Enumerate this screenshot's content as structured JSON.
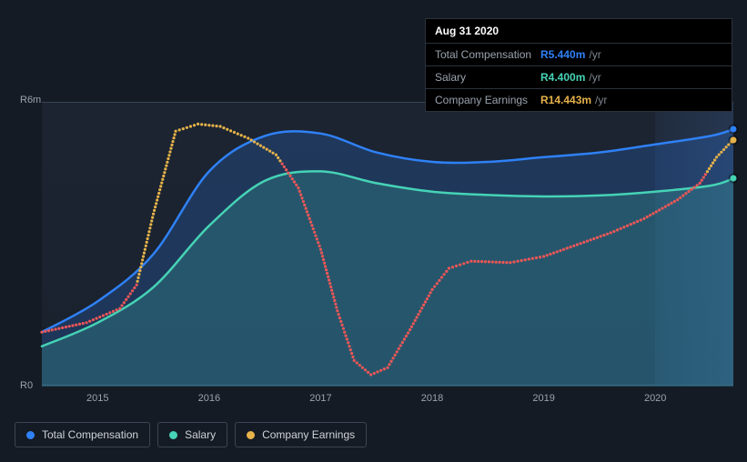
{
  "chart": {
    "type": "area-line",
    "background_color": "#151b24",
    "plot_background": "#1b2430",
    "grid_color": "#3a4452",
    "text_color": "#9aa3af",
    "ylim": [
      0,
      6
    ],
    "y_unit_prefix": "R",
    "y_unit_suffix": "m",
    "y_ticks": [
      {
        "v": 0,
        "label": "R0"
      },
      {
        "v": 6,
        "label": "R6m"
      }
    ],
    "x_range": [
      2014.5,
      2020.7
    ],
    "x_ticks": [
      2015,
      2016,
      2017,
      2018,
      2019,
      2020
    ],
    "highlight_from_x": 2020.0,
    "series": [
      {
        "id": "total_comp",
        "label": "Total Compensation",
        "color": "#2f81f7",
        "fill": "rgba(47,129,247,0.22)",
        "style": "area",
        "line_width": 2.5,
        "data": [
          [
            2014.5,
            1.15
          ],
          [
            2015.0,
            1.8
          ],
          [
            2015.5,
            2.8
          ],
          [
            2016.0,
            4.55
          ],
          [
            2016.5,
            5.3
          ],
          [
            2017.0,
            5.35
          ],
          [
            2017.5,
            4.95
          ],
          [
            2018.0,
            4.75
          ],
          [
            2018.5,
            4.75
          ],
          [
            2019.0,
            4.85
          ],
          [
            2019.5,
            4.95
          ],
          [
            2020.0,
            5.12
          ],
          [
            2020.5,
            5.3
          ],
          [
            2020.7,
            5.44
          ]
        ]
      },
      {
        "id": "salary",
        "label": "Salary",
        "color": "#46d3b6",
        "fill": "rgba(70,211,182,0.20)",
        "style": "area",
        "line_width": 2.5,
        "data": [
          [
            2014.5,
            0.85
          ],
          [
            2015.0,
            1.35
          ],
          [
            2015.5,
            2.1
          ],
          [
            2016.0,
            3.4
          ],
          [
            2016.5,
            4.35
          ],
          [
            2017.0,
            4.55
          ],
          [
            2017.5,
            4.3
          ],
          [
            2018.0,
            4.12
          ],
          [
            2018.5,
            4.05
          ],
          [
            2019.0,
            4.02
          ],
          [
            2019.5,
            4.04
          ],
          [
            2020.0,
            4.12
          ],
          [
            2020.5,
            4.25
          ],
          [
            2020.7,
            4.4
          ]
        ]
      },
      {
        "id": "earnings",
        "label": "Company Earnings",
        "color_segments": [
          {
            "until_x": 2015.35,
            "color": "#eb5757"
          },
          {
            "until_x": 2016.65,
            "color": "#e6b24a"
          },
          {
            "until_x": 2020.45,
            "color": "#eb5757"
          },
          {
            "until_x": 99,
            "color": "#e6b24a"
          }
        ],
        "legend_color": "#e6b24a",
        "style": "dotted",
        "line_width": 2.5,
        "dot_spacing": 4,
        "dot_radius": 1.6,
        "data": [
          [
            2014.5,
            1.15
          ],
          [
            2014.9,
            1.35
          ],
          [
            2015.2,
            1.65
          ],
          [
            2015.35,
            2.15
          ],
          [
            2015.5,
            3.65
          ],
          [
            2015.7,
            5.4
          ],
          [
            2015.9,
            5.55
          ],
          [
            2016.1,
            5.5
          ],
          [
            2016.35,
            5.25
          ],
          [
            2016.6,
            4.9
          ],
          [
            2016.8,
            4.2
          ],
          [
            2017.0,
            2.9
          ],
          [
            2017.15,
            1.6
          ],
          [
            2017.3,
            0.55
          ],
          [
            2017.45,
            0.25
          ],
          [
            2017.6,
            0.4
          ],
          [
            2017.8,
            1.2
          ],
          [
            2018.0,
            2.05
          ],
          [
            2018.15,
            2.5
          ],
          [
            2018.35,
            2.65
          ],
          [
            2018.7,
            2.62
          ],
          [
            2019.0,
            2.75
          ],
          [
            2019.3,
            3.0
          ],
          [
            2019.6,
            3.25
          ],
          [
            2019.9,
            3.55
          ],
          [
            2020.2,
            3.95
          ],
          [
            2020.4,
            4.3
          ],
          [
            2020.55,
            4.85
          ],
          [
            2020.7,
            5.22
          ]
        ]
      }
    ],
    "end_markers": true
  },
  "tooltip": {
    "date": "Aug 31 2020",
    "unit": "/yr",
    "rows": [
      {
        "label": "Total Compensation",
        "value": "R5.440m",
        "color": "#2f81f7"
      },
      {
        "label": "Salary",
        "value": "R4.400m",
        "color": "#46d3b6"
      },
      {
        "label": "Company Earnings",
        "value": "R14.443m",
        "color": "#e6b24a"
      }
    ]
  },
  "legend": {
    "border_color": "#3a4452",
    "items": [
      {
        "label": "Total Compensation",
        "color": "#2f81f7"
      },
      {
        "label": "Salary",
        "color": "#46d3b6"
      },
      {
        "label": "Company Earnings",
        "color": "#e6b24a"
      }
    ]
  }
}
